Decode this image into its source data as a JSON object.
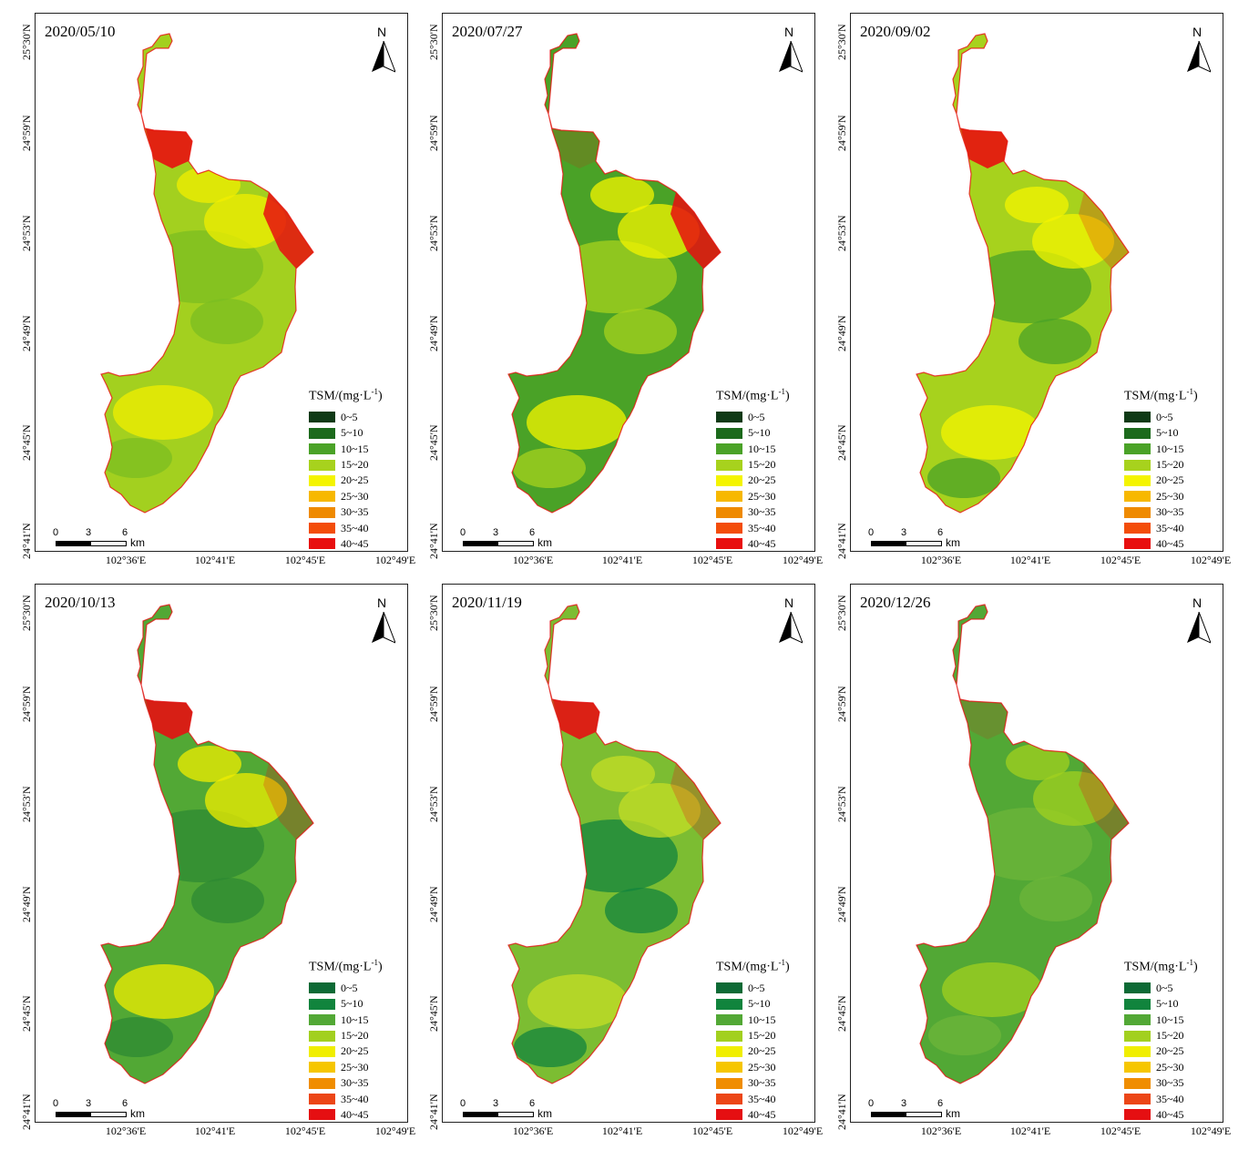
{
  "legend": {
    "title_prefix": "TSM/(mg·L",
    "title_exp": "-1",
    "title_suffix": ")",
    "classes": [
      "0~5",
      "5~10",
      "10~15",
      "15~20",
      "20~25",
      "25~30",
      "30~35",
      "35~40",
      "40~45"
    ]
  },
  "palettes": {
    "dark": [
      "#0f3a16",
      "#1c6a1c",
      "#4aa227",
      "#a7d21d",
      "#f4f400",
      "#f7b800",
      "#ef8a00",
      "#f34d0a",
      "#e80f0f"
    ],
    "teal": [
      "#0d6a35",
      "#11843d",
      "#52a835",
      "#a2d01f",
      "#f0ee00",
      "#f6c600",
      "#f08d00",
      "#ec4617",
      "#e50f12"
    ]
  },
  "north_letter": "N",
  "scale": {
    "labels": [
      "0",
      "3",
      "6"
    ],
    "unit": "km"
  },
  "lon_labels": [
    "102°36'E",
    "102°41'E",
    "102°45'E",
    "102°49'E"
  ],
  "lat_labels": [
    "25°30'N",
    "24°59'N",
    "24°53'N",
    "24°49'N",
    "24°45'N",
    "24°41'N"
  ],
  "panels": [
    {
      "date": "2020/05/10",
      "palette": "dark",
      "dominant": [
        "#a3d01f",
        "#7bbd21",
        "#f1ef00"
      ],
      "accent": "#e80f0f"
    },
    {
      "date": "2020/07/27",
      "palette": "dark",
      "dominant": [
        "#4aa227",
        "#a7d21d",
        "#f4f400"
      ],
      "accent": "#e80f0f"
    },
    {
      "date": "2020/09/02",
      "palette": "dark",
      "dominant": [
        "#a7d21d",
        "#4aa227",
        "#f4f400"
      ],
      "accent": "#e80f0f"
    },
    {
      "date": "2020/10/13",
      "palette": "teal",
      "dominant": [
        "#52a835",
        "#2e8a33",
        "#f0ee00"
      ],
      "accent": "#e50f12"
    },
    {
      "date": "2020/11/19",
      "palette": "teal",
      "dominant": [
        "#7cbd32",
        "#11843d",
        "#c5df26"
      ],
      "accent": "#e50f12"
    },
    {
      "date": "2020/12/26",
      "palette": "teal",
      "dominant": [
        "#52a835",
        "#6db63a",
        "#a2d01f"
      ],
      "accent": "#e50f12"
    }
  ]
}
